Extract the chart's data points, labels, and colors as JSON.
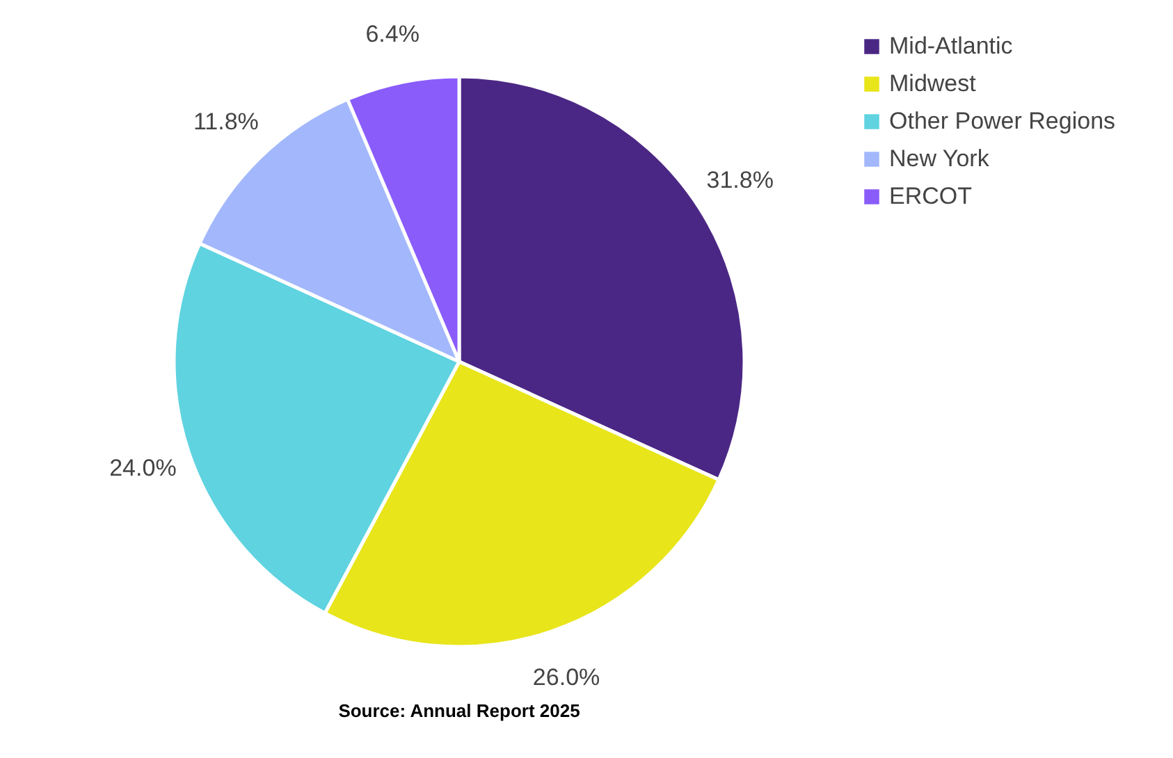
{
  "chart_data": {
    "type": "pie",
    "categories": [
      "Mid-Atlantic",
      "Midwest",
      "Other Power Regions",
      "New York",
      "ERCOT"
    ],
    "values": [
      31.8,
      26.0,
      24.0,
      11.8,
      6.4
    ],
    "value_labels": [
      "31.8%",
      "26.0%",
      "24.0%",
      "11.8%",
      "6.4%"
    ],
    "colors": [
      "#4b2785",
      "#e8e51b",
      "#5fd3e0",
      "#a3b8fc",
      "#8a5cfa"
    ],
    "legend": "right",
    "annotations": [
      "Source: Annual Report 2025"
    ]
  }
}
